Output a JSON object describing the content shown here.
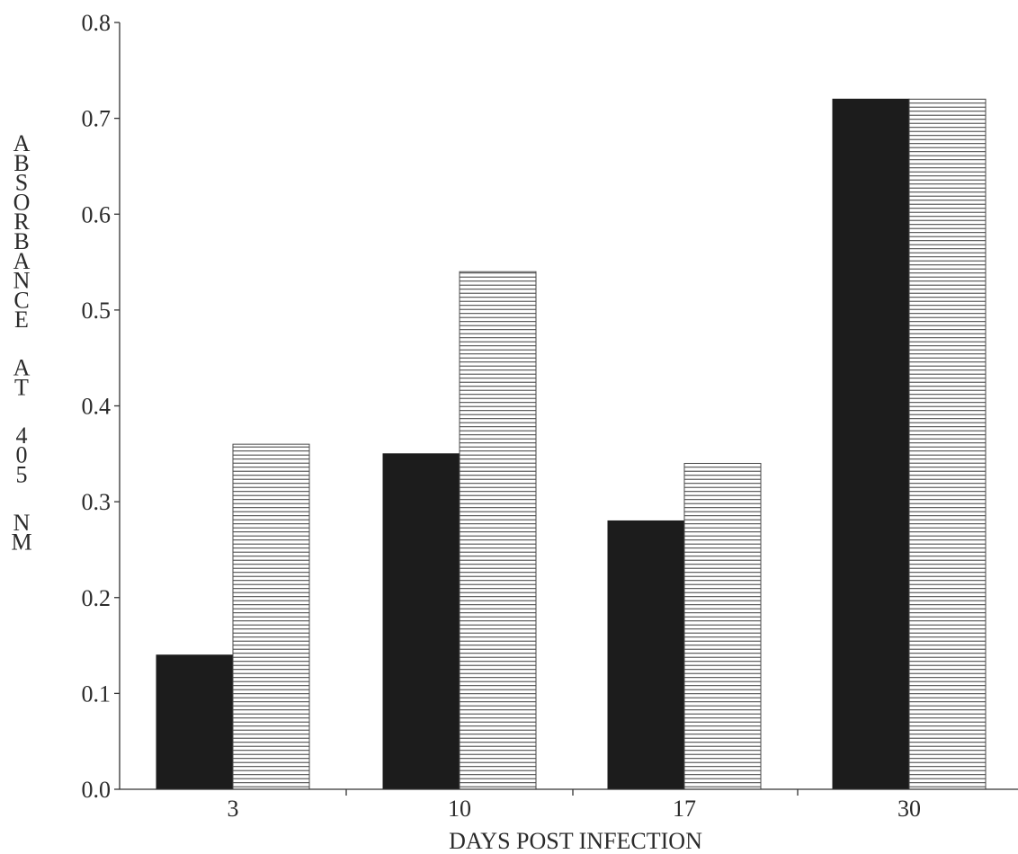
{
  "chart_data": {
    "type": "bar",
    "title": "",
    "xlabel": "DAYS POST INFECTION",
    "ylabel": "ABSORBANCE AT 405 NM",
    "categories": [
      "3",
      "10",
      "17",
      "30"
    ],
    "series": [
      {
        "values": [
          0.14,
          0.35,
          0.28,
          0.72
        ],
        "fill": "solid",
        "color": "#1c1c1c"
      },
      {
        "values": [
          0.36,
          0.54,
          0.34,
          0.72
        ],
        "fill": "horizontal-hatch",
        "color": "#2a2a2a"
      }
    ],
    "ylim": [
      0.0,
      0.8
    ],
    "yticks": [
      "0.0",
      "0.1",
      "0.2",
      "0.3",
      "0.4",
      "0.5",
      "0.6",
      "0.7",
      "0.8"
    ],
    "grid": false,
    "legend": "none"
  }
}
